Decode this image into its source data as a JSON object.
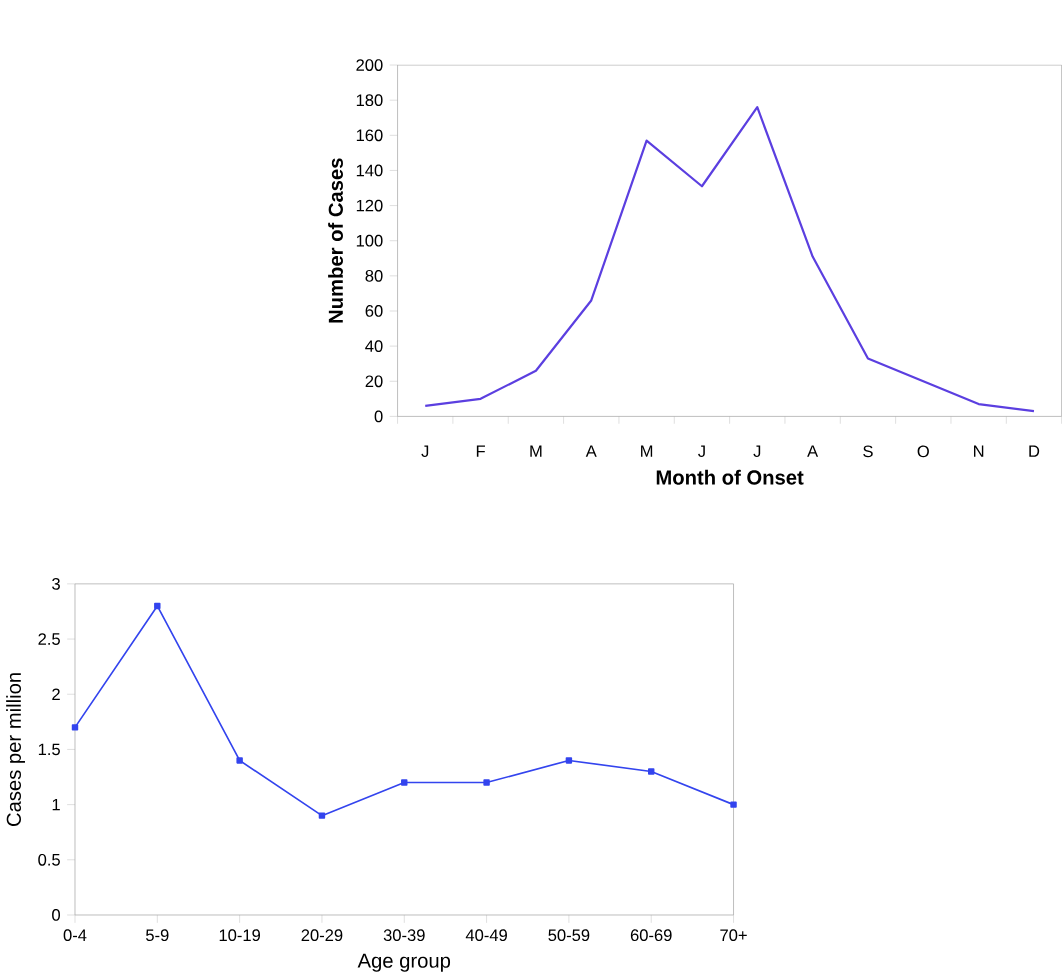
{
  "chart_data": [
    {
      "type": "line",
      "xlabel": "Month of Onset",
      "ylabel": "Number of Cases",
      "categories": [
        "J",
        "F",
        "M",
        "A",
        "M",
        "J",
        "J",
        "A",
        "S",
        "O",
        "N",
        "D"
      ],
      "series": [
        {
          "color": "#5b3fe0",
          "values": [
            6,
            10,
            26,
            66,
            157,
            131,
            176,
            91,
            33,
            20,
            7,
            3
          ]
        }
      ],
      "ylim": [
        0,
        200
      ],
      "yticks": [
        0,
        20,
        40,
        60,
        80,
        100,
        120,
        140,
        160,
        180,
        200
      ],
      "marker": "none"
    },
    {
      "type": "line",
      "xlabel": "Age group",
      "ylabel": "Cases per million",
      "categories": [
        "0-4",
        "5-9",
        "10-19",
        "20-29",
        "30-39",
        "40-49",
        "50-59",
        "60-69",
        "70+"
      ],
      "series": [
        {
          "color": "#3344ee",
          "values": [
            1.7,
            2.8,
            1.4,
            0.9,
            1.2,
            1.2,
            1.4,
            1.3,
            1.0
          ]
        }
      ],
      "ylim": [
        0,
        3
      ],
      "yticks": [
        0,
        0.5,
        1,
        1.5,
        2,
        2.5,
        3
      ],
      "marker": "square"
    }
  ]
}
